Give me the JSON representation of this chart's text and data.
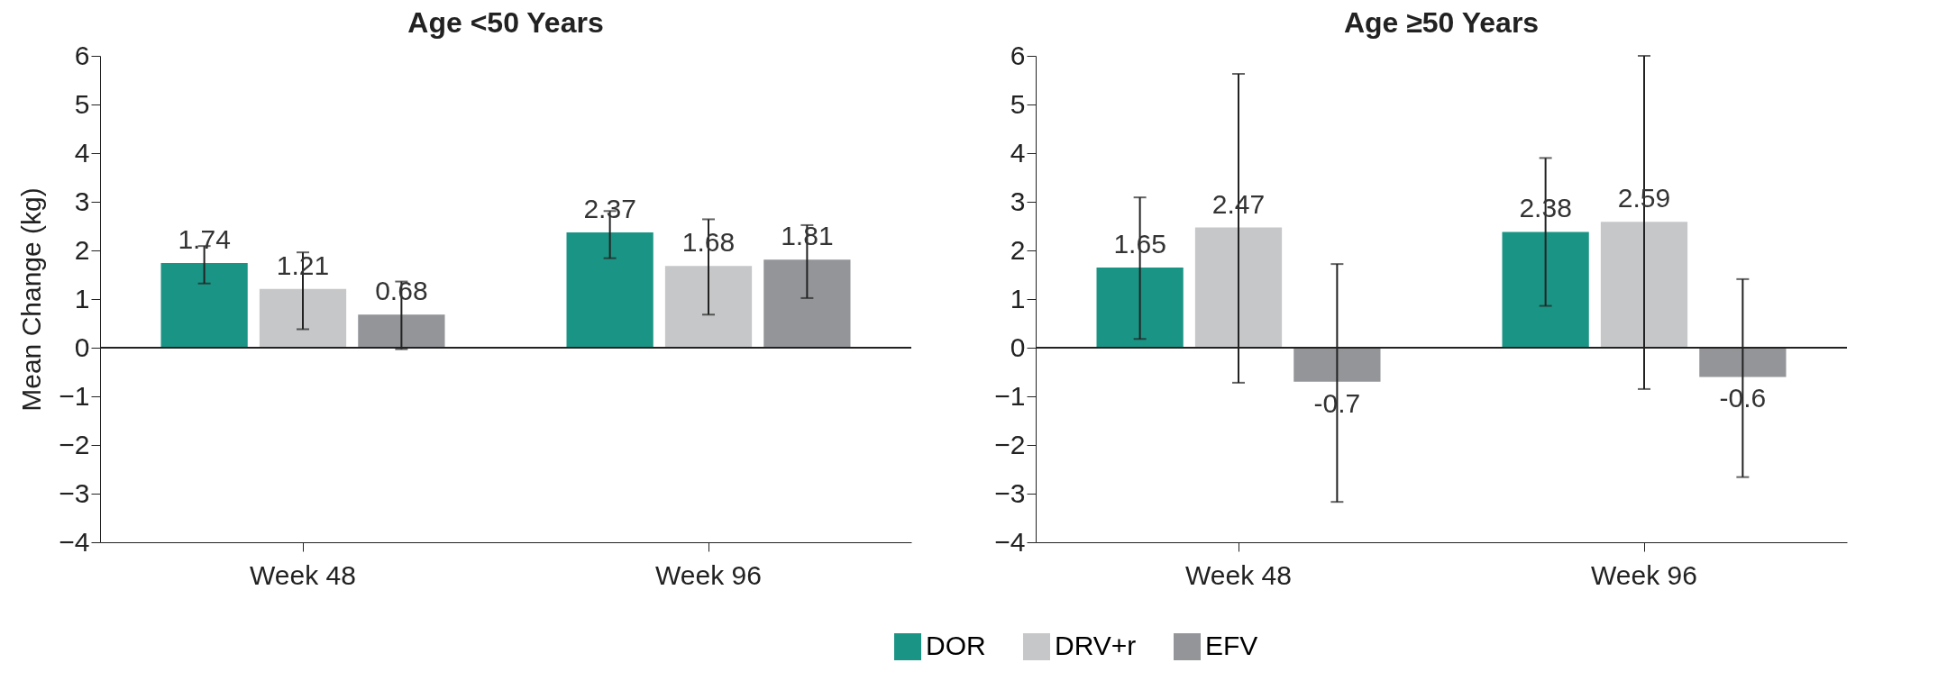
{
  "chart_data": [
    {
      "type": "bar",
      "title": "Age <50 Years",
      "ylabel": "Mean Change (kg)",
      "categories": [
        "Week 48",
        "Week 96"
      ],
      "ylim": [
        -4,
        6
      ],
      "yticks": [
        -4,
        -3,
        -2,
        -1,
        0,
        1,
        2,
        3,
        4,
        5,
        6
      ],
      "data_labels": true,
      "legend": "bottom",
      "grid": false,
      "ref_lines": [
        {
          "axis": "y",
          "value": 0,
          "color": "#222222"
        }
      ],
      "series": [
        {
          "name": "DOR",
          "color": "#1a9585",
          "values": [
            1.74,
            2.37
          ],
          "errors": [
            [
              1.32,
              2.09
            ],
            [
              1.84,
              2.81
            ]
          ]
        },
        {
          "name": "DRV+r",
          "color": "#c6c7c8",
          "values": [
            1.21,
            1.68
          ],
          "errors": [
            [
              0.38,
              1.96
            ],
            [
              0.68,
              2.64
            ]
          ]
        },
        {
          "name": "EFV",
          "color": "#939598",
          "values": [
            0.68,
            1.81
          ],
          "errors": [
            [
              -0.03,
              1.36
            ],
            [
              1.02,
              2.52
            ]
          ]
        }
      ]
    },
    {
      "type": "bar",
      "title": "Age ≥50 Years",
      "categories": [
        "Week 48",
        "Week 96"
      ],
      "ylim": [
        -4,
        6
      ],
      "yticks": [
        -4,
        -3,
        -2,
        -1,
        0,
        1,
        2,
        3,
        4,
        5,
        6
      ],
      "data_labels": true,
      "legend": "bottom",
      "grid": false,
      "ref_lines": [
        {
          "axis": "y",
          "value": 0,
          "color": "#222222"
        }
      ],
      "series": [
        {
          "name": "DOR",
          "color": "#1a9585",
          "values": [
            1.65,
            2.38
          ],
          "errors": [
            [
              0.18,
              3.09
            ],
            [
              0.86,
              3.9
            ]
          ]
        },
        {
          "name": "DRV+r",
          "color": "#c6c7c8",
          "values": [
            2.47,
            2.59
          ],
          "errors": [
            [
              -0.72,
              5.63
            ],
            [
              -0.85,
              6.0
            ]
          ]
        },
        {
          "name": "EFV",
          "color": "#939598",
          "values": [
            -0.7,
            -0.6
          ],
          "errors": [
            [
              -3.17,
              1.72
            ],
            [
              -2.66,
              1.41
            ]
          ]
        }
      ]
    }
  ]
}
